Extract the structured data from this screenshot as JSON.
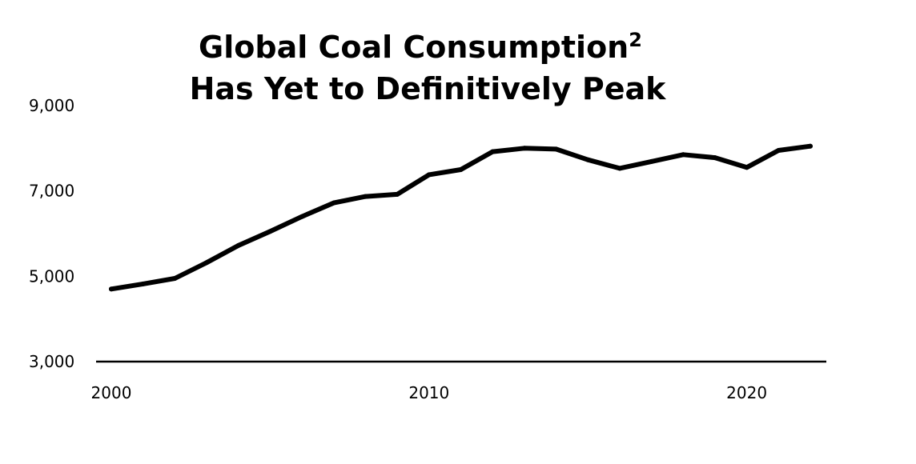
{
  "chart_data": {
    "type": "line",
    "title_line1": "Global Coal Consumption",
    "title_superscript": "2",
    "title_line2": "Has Yet to Definitively Peak",
    "xlabel": "",
    "ylabel": "",
    "xlim": [
      2000,
      2022
    ],
    "ylim": [
      3000,
      9000
    ],
    "y_ticks": [
      {
        "value": 3000,
        "label": "3,000"
      },
      {
        "value": 5000,
        "label": "5,000"
      },
      {
        "value": 7000,
        "label": "7,000"
      },
      {
        "value": 9000,
        "label": "9,000"
      }
    ],
    "x_ticks": [
      {
        "value": 2000,
        "label": "2000"
      },
      {
        "value": 2010,
        "label": "2010"
      },
      {
        "value": 2020,
        "label": "2020"
      }
    ],
    "grid": false,
    "colors": {
      "line": "#000000",
      "axis": "#000000"
    },
    "series": [
      {
        "x": [
          2000,
          2001,
          2002,
          2003,
          2004,
          2005,
          2006,
          2007,
          2008,
          2009,
          2010,
          2011,
          2012,
          2013,
          2014,
          2015,
          2016,
          2017,
          2018,
          2019,
          2020,
          2021,
          2022
        ],
        "values": [
          4700,
          4820,
          4950,
          5320,
          5720,
          6050,
          6400,
          6720,
          6870,
          6920,
          7380,
          7500,
          7920,
          8000,
          7980,
          7730,
          7530,
          7690,
          7850,
          7780,
          7550,
          7950,
          8050
        ]
      }
    ]
  }
}
